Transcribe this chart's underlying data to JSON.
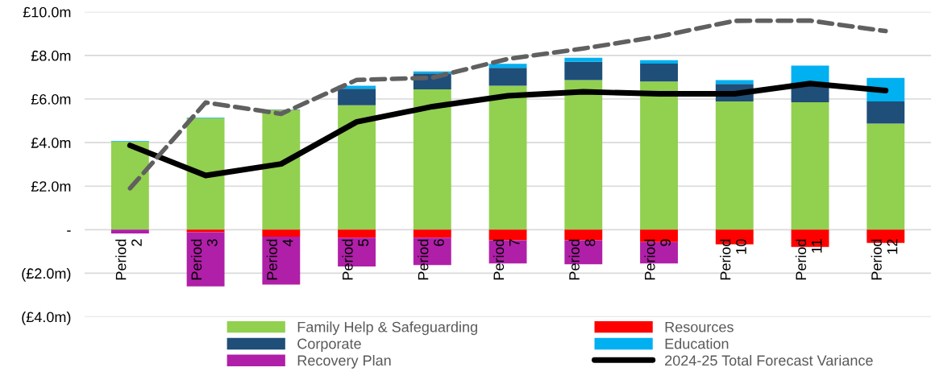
{
  "chart_data": {
    "type": "bar",
    "stacked": true,
    "categories": [
      "Period 2",
      "Period 3",
      "Period 4",
      "Period 5",
      "Period 6",
      "Period 7",
      "Period 8",
      "Period 9",
      "Period 10",
      "Period 11",
      "Period 12"
    ],
    "series": [
      {
        "name": "Family Help & Safeguarding",
        "color": "#92d050",
        "values": [
          4.05,
          5.11,
          5.49,
          5.71,
          6.44,
          6.61,
          6.87,
          6.8,
          5.89,
          5.85,
          4.87
        ]
      },
      {
        "name": "Resources",
        "color": "#ff0000",
        "values": [
          0,
          -0.12,
          -0.32,
          -0.37,
          -0.37,
          -0.49,
          -0.49,
          -0.57,
          -0.67,
          -0.79,
          -0.61
        ]
      },
      {
        "name": "Corporate",
        "color": "#1f4e79",
        "values": [
          0,
          0,
          0.02,
          0.76,
          0.73,
          0.82,
          0.84,
          0.83,
          0.8,
          0.89,
          1.02
        ]
      },
      {
        "name": "Education",
        "color": "#00b0f0",
        "values": [
          0.03,
          0.03,
          0,
          0.14,
          0.1,
          0.19,
          0.18,
          0.15,
          0.18,
          0.79,
          1.08
        ]
      },
      {
        "name": "Recovery Plan",
        "color": "#b01fa8",
        "values": [
          -0.17,
          -2.48,
          -2.2,
          -1.32,
          -1.25,
          -1.06,
          -1.1,
          -0.98,
          0,
          0,
          0
        ]
      },
      {
        "name": "2024-25 Total Forecast Variance",
        "type": "line",
        "color": "#000000",
        "line_style": "solid",
        "values": [
          3.87,
          2.49,
          3.02,
          4.95,
          5.65,
          6.15,
          6.33,
          6.24,
          6.24,
          6.71,
          6.39
        ]
      },
      {
        "type": "line",
        "color": "#606060",
        "line_style": "dashed",
        "values": [
          1.9,
          5.84,
          5.32,
          6.88,
          6.98,
          7.84,
          8.32,
          8.87,
          9.59,
          9.6,
          9.12
        ]
      }
    ],
    "ylim": [
      -4,
      10
    ],
    "yticks": [
      {
        "value": -4,
        "label": "(£4.0m)"
      },
      {
        "value": -2,
        "label": "(£2.0m)"
      },
      {
        "value": 0,
        "label": "-"
      },
      {
        "value": 2,
        "label": "£2.0m"
      },
      {
        "value": 4,
        "label": "£4.0m"
      },
      {
        "value": 6,
        "label": "£6.0m"
      },
      {
        "value": 8,
        "label": "£8.0m"
      },
      {
        "value": 10,
        "label": "£10.0m"
      }
    ],
    "grid": "y",
    "legend": "bottom"
  }
}
